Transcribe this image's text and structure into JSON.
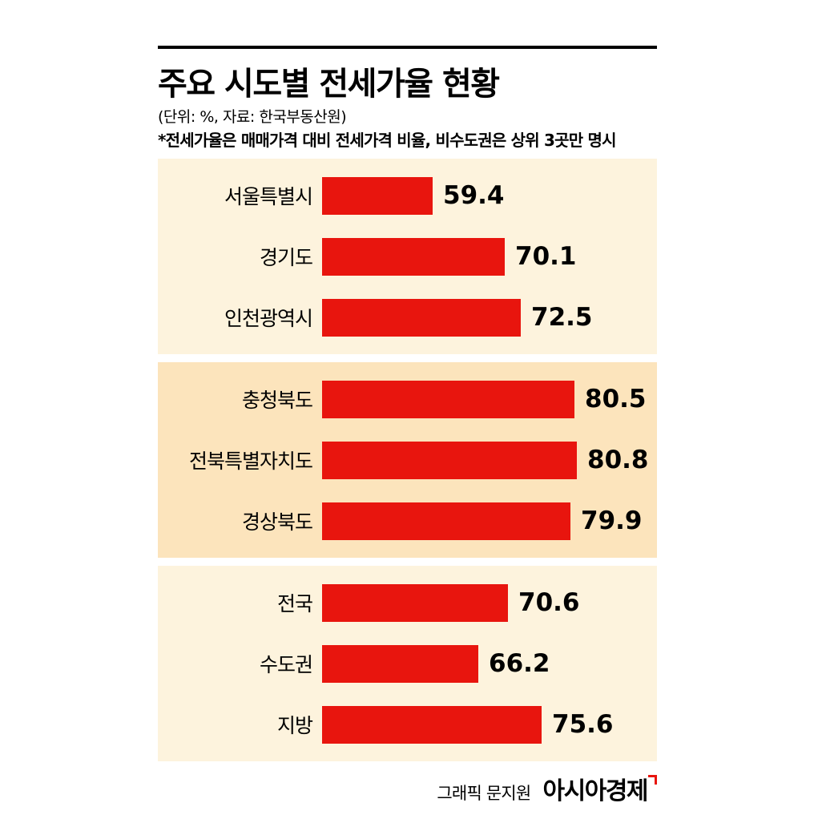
{
  "header": {
    "title": "주요 시도별 전세가율 현황",
    "unit_note": "(단위: %, 자료: 한국부동산원)",
    "footnote": "*전세가율은 매매가격 대비 전세가격 비율, 비수도권은 상위 3곳만 명시"
  },
  "footer": {
    "credit": "그래픽 문지원",
    "brand": "아시아경제"
  },
  "colors": {
    "bar": "#e8150e",
    "panel_light": "#fdf3dd",
    "panel_peach": "#fce4bc",
    "text": "#000000",
    "rule": "#000000"
  },
  "chart_data": {
    "type": "bar",
    "orientation": "horizontal",
    "title": "주요 시도별 전세가율 현황",
    "unit": "%",
    "source": "한국부동산원",
    "value_labels_shown": true,
    "grid": false,
    "legend": false,
    "bars_zero_based": false,
    "groups": [
      {
        "panel": "light",
        "rows": [
          {
            "label": "서울특별시",
            "value": 59.4
          },
          {
            "label": "경기도",
            "value": 70.1
          },
          {
            "label": "인천광역시",
            "value": 72.5
          }
        ]
      },
      {
        "panel": "peach",
        "rows": [
          {
            "label": "충청북도",
            "value": 80.5
          },
          {
            "label": "전북특별자치도",
            "value": 80.8
          },
          {
            "label": "경상북도",
            "value": 79.9
          }
        ]
      },
      {
        "panel": "light",
        "rows": [
          {
            "label": "전국",
            "value": 70.6
          },
          {
            "label": "수도권",
            "value": 66.2
          },
          {
            "label": "지방",
            "value": 75.6
          }
        ]
      }
    ]
  }
}
